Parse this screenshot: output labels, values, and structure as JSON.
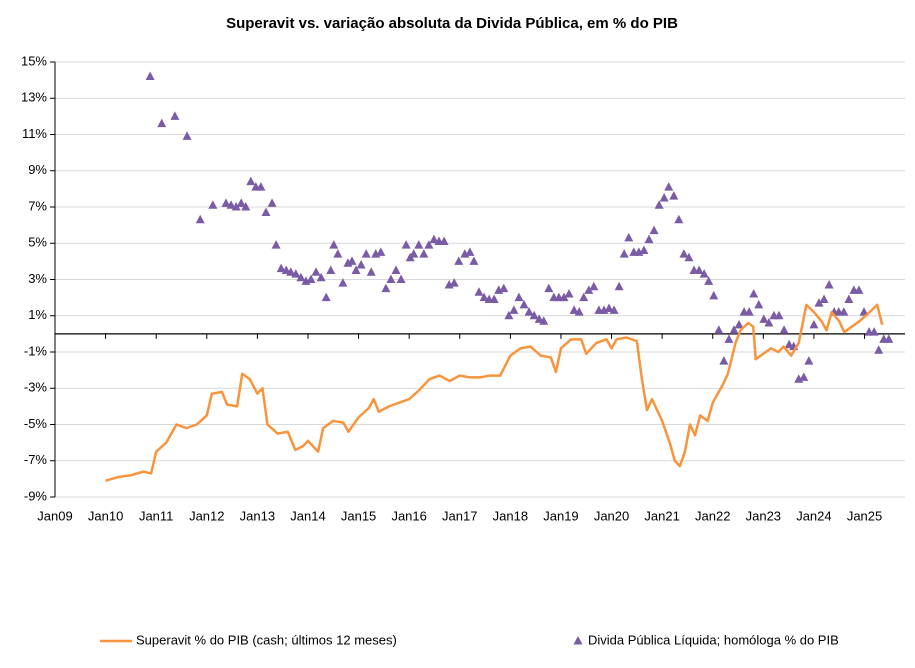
{
  "chart_data": {
    "type": "combo",
    "title": "Superavit vs. variação absoluta da Divida Pública, em % do PIB",
    "xlim": [
      2009,
      2025.8
    ],
    "xticks": [
      {
        "value": 2009,
        "label": "Jan09"
      },
      {
        "value": 2010,
        "label": "Jan10"
      },
      {
        "value": 2011,
        "label": "Jan11"
      },
      {
        "value": 2012,
        "label": "Jan12"
      },
      {
        "value": 2013,
        "label": "Jan13"
      },
      {
        "value": 2014,
        "label": "Jan14"
      },
      {
        "value": 2015,
        "label": "Jan15"
      },
      {
        "value": 2016,
        "label": "Jan16"
      },
      {
        "value": 2017,
        "label": "Jan17"
      },
      {
        "value": 2018,
        "label": "Jan18"
      },
      {
        "value": 2019,
        "label": "Jan19"
      },
      {
        "value": 2020,
        "label": "Jan20"
      },
      {
        "value": 2021,
        "label": "Jan21"
      },
      {
        "value": 2022,
        "label": "Jan22"
      },
      {
        "value": 2023,
        "label": "Jan23"
      },
      {
        "value": 2024,
        "label": "Jan24"
      },
      {
        "value": 2025,
        "label": "Jan25"
      }
    ],
    "ylim": [
      -9,
      15
    ],
    "yticks": [
      {
        "value": 15,
        "label": "15%"
      },
      {
        "value": 13,
        "label": "13%"
      },
      {
        "value": 11,
        "label": "11%"
      },
      {
        "value": 9,
        "label": "9%"
      },
      {
        "value": 7,
        "label": "7%"
      },
      {
        "value": 5,
        "label": "5%"
      },
      {
        "value": 3,
        "label": "3%"
      },
      {
        "value": 1,
        "label": "1%"
      },
      {
        "value": -1,
        "label": "-1%"
      },
      {
        "value": -3,
        "label": "-3%"
      },
      {
        "value": -5,
        "label": "-5%"
      },
      {
        "value": -7,
        "label": "-7%"
      },
      {
        "value": -9,
        "label": "-9%"
      }
    ],
    "grid": true,
    "legend": "bottom",
    "series": [
      {
        "name": "Superavit % do PIB (cash; últimos 12 meses)",
        "type": "line",
        "color": "#f7943c",
        "x": [
          2010.0,
          2010.25,
          2010.5,
          2010.75,
          2010.9,
          2011.0,
          2011.2,
          2011.4,
          2011.6,
          2011.8,
          2012.0,
          2012.1,
          2012.3,
          2012.4,
          2012.6,
          2012.7,
          2012.85,
          2013.0,
          2013.1,
          2013.2,
          2013.4,
          2013.6,
          2013.75,
          2013.9,
          2014.0,
          2014.2,
          2014.3,
          2014.5,
          2014.7,
          2014.8,
          2015.0,
          2015.2,
          2015.3,
          2015.4,
          2015.6,
          2015.8,
          2016.0,
          2016.2,
          2016.4,
          2016.6,
          2016.8,
          2017.0,
          2017.2,
          2017.4,
          2017.6,
          2017.8,
          2018.0,
          2018.2,
          2018.4,
          2018.6,
          2018.8,
          2018.9,
          2019.0,
          2019.2,
          2019.4,
          2019.5,
          2019.7,
          2019.9,
          2020.0,
          2020.1,
          2020.3,
          2020.5,
          2020.6,
          2020.7,
          2020.8,
          2021.0,
          2021.15,
          2021.25,
          2021.35,
          2021.45,
          2021.55,
          2021.65,
          2021.75,
          2021.9,
          2022.0,
          2022.2,
          2022.3,
          2022.45,
          2022.55,
          2022.7,
          2022.8,
          2022.85,
          2023.0,
          2023.15,
          2023.3,
          2023.4,
          2023.55,
          2023.7,
          2023.85,
          2024.0,
          2024.15,
          2024.25,
          2024.35,
          2024.5,
          2024.6,
          2024.75,
          2024.9,
          2025.1,
          2025.25,
          2025.35
        ],
        "values": [
          -8.1,
          -7.9,
          -7.8,
          -7.6,
          -7.7,
          -6.5,
          -6.0,
          -5.0,
          -5.2,
          -5.0,
          -4.5,
          -3.3,
          -3.2,
          -3.9,
          -4.0,
          -2.2,
          -2.5,
          -3.3,
          -3.0,
          -5.0,
          -5.5,
          -5.4,
          -6.4,
          -6.2,
          -5.9,
          -6.5,
          -5.2,
          -4.8,
          -4.9,
          -5.4,
          -4.6,
          -4.1,
          -3.6,
          -4.3,
          -4.0,
          -3.8,
          -3.6,
          -3.1,
          -2.5,
          -2.3,
          -2.6,
          -2.3,
          -2.4,
          -2.4,
          -2.3,
          -2.3,
          -1.2,
          -0.8,
          -0.7,
          -1.2,
          -1.3,
          -2.1,
          -0.8,
          -0.3,
          -0.3,
          -1.1,
          -0.5,
          -0.3,
          -0.8,
          -0.3,
          -0.2,
          -0.4,
          -2.5,
          -4.2,
          -3.6,
          -4.8,
          -6.0,
          -7.0,
          -7.3,
          -6.5,
          -5.0,
          -5.6,
          -4.5,
          -4.8,
          -3.8,
          -2.8,
          -2.2,
          -0.5,
          0.2,
          0.6,
          0.4,
          -1.4,
          -1.1,
          -0.8,
          -1.0,
          -0.7,
          -1.2,
          -0.5,
          1.6,
          1.2,
          0.7,
          0.2,
          1.2,
          0.7,
          0.1,
          0.4,
          0.7,
          1.2,
          1.6,
          0.5
        ]
      },
      {
        "name": "Divida Pública Líquida; homóloga % do PIB",
        "type": "scatter",
        "color": "#7a5ba6",
        "x": [
          2010.88,
          2011.11,
          2011.37,
          2011.61,
          2011.87,
          2012.12,
          2012.38,
          2012.48,
          2012.58,
          2012.68,
          2012.77,
          2012.87,
          2012.97,
          2013.07,
          2013.17,
          2013.29,
          2013.37,
          2013.47,
          2013.57,
          2013.66,
          2013.76,
          2013.86,
          2013.96,
          2014.06,
          2014.16,
          2014.26,
          2014.36,
          2014.45,
          2014.51,
          2014.59,
          2014.69,
          2014.79,
          2014.87,
          2014.95,
          2015.05,
          2015.15,
          2015.25,
          2015.34,
          2015.44,
          2015.54,
          2015.64,
          2015.74,
          2015.84,
          2015.94,
          2016.02,
          2016.09,
          2016.19,
          2016.29,
          2016.39,
          2016.49,
          2016.59,
          2016.69,
          2016.79,
          2016.89,
          2016.98,
          2017.1,
          2017.2,
          2017.28,
          2017.38,
          2017.48,
          2017.58,
          2017.68,
          2017.77,
          2017.87,
          2017.97,
          2018.07,
          2018.17,
          2018.27,
          2018.37,
          2018.47,
          2018.57,
          2018.66,
          2018.76,
          2018.86,
          2018.96,
          2019.06,
          2019.16,
          2019.26,
          2019.36,
          2019.45,
          2019.55,
          2019.65,
          2019.75,
          2019.85,
          2019.95,
          2020.05,
          2020.15,
          2020.25,
          2020.34,
          2020.44,
          2020.54,
          2020.64,
          2020.74,
          2020.84,
          2020.94,
          2021.04,
          2021.13,
          2021.23,
          2021.33,
          2021.43,
          2021.53,
          2021.63,
          2021.73,
          2021.83,
          2021.92,
          2022.02,
          2022.12,
          2022.22,
          2022.32,
          2022.42,
          2022.52,
          2022.62,
          2022.72,
          2022.81,
          2022.91,
          2023.01,
          2023.11,
          2023.21,
          2023.31,
          2023.41,
          2023.51,
          2023.6,
          2023.7,
          2023.8,
          2023.9,
          2024.0,
          2024.1,
          2024.2,
          2024.3,
          2024.4,
          2024.49,
          2024.59,
          2024.69,
          2024.79,
          2024.89,
          2024.99,
          2025.09,
          2025.19,
          2025.28,
          2025.38,
          2025.48
        ],
        "values": [
          14.2,
          11.6,
          12.0,
          10.9,
          6.3,
          7.1,
          7.2,
          7.1,
          7.0,
          7.2,
          7.0,
          8.4,
          8.1,
          8.1,
          6.7,
          7.2,
          4.9,
          3.6,
          3.5,
          3.4,
          3.3,
          3.1,
          2.9,
          3.0,
          3.4,
          3.1,
          2.0,
          3.5,
          4.9,
          4.4,
          2.8,
          3.9,
          4.0,
          3.5,
          3.8,
          4.4,
          3.4,
          4.4,
          4.5,
          2.5,
          3.0,
          3.5,
          3.0,
          4.9,
          4.2,
          4.4,
          4.9,
          4.4,
          4.9,
          5.2,
          5.1,
          5.1,
          2.7,
          2.8,
          4.0,
          4.4,
          4.5,
          4.0,
          2.3,
          2.0,
          1.9,
          1.9,
          2.4,
          2.5,
          1.0,
          1.3,
          2.0,
          1.6,
          1.2,
          1.0,
          0.8,
          0.7,
          2.5,
          2.0,
          2.0,
          2.0,
          2.2,
          1.3,
          1.2,
          2.0,
          2.4,
          2.6,
          1.3,
          1.3,
          1.4,
          1.3,
          2.6,
          4.4,
          5.3,
          4.5,
          4.5,
          4.6,
          5.2,
          5.7,
          7.1,
          7.5,
          8.1,
          7.6,
          6.3,
          4.4,
          4.2,
          3.5,
          3.5,
          3.3,
          2.9,
          2.1,
          0.2,
          -1.5,
          -0.3,
          0.2,
          0.5,
          1.2,
          1.2,
          2.2,
          1.6,
          0.8,
          0.6,
          1.0,
          1.0,
          0.2,
          -0.6,
          -0.7,
          -2.5,
          -2.4,
          -1.5,
          0.5,
          1.7,
          1.9,
          2.7,
          1.2,
          1.2,
          1.2,
          1.9,
          2.4,
          2.4,
          1.2,
          0.1,
          0.1,
          -0.9,
          -0.3,
          -0.3
        ]
      }
    ]
  }
}
